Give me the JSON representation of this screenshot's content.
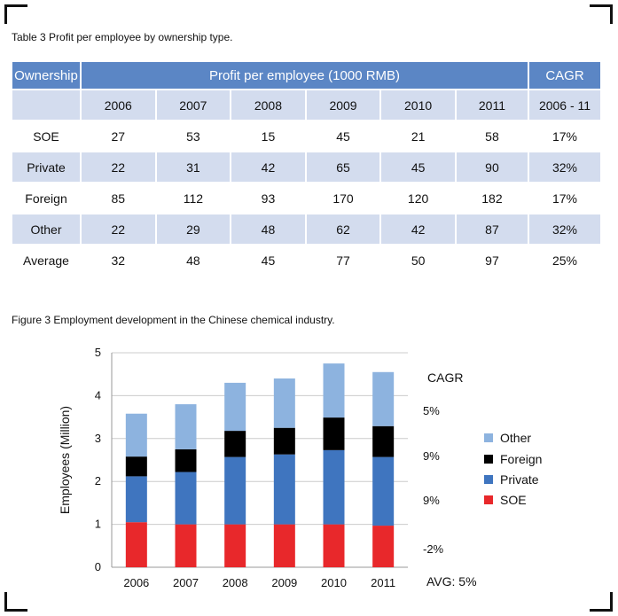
{
  "table": {
    "caption": "Table 3 Profit per employee by ownership type.",
    "header": {
      "ownership": "Ownership",
      "profit": "Profit per employee (1000 RMB)",
      "cagr": "CAGR"
    },
    "years": [
      "2006",
      "2007",
      "2008",
      "2009",
      "2010",
      "2011"
    ],
    "cagr_period": "2006 - 11",
    "rows": [
      {
        "label": "SOE",
        "values": [
          "27",
          "53",
          "15",
          "45",
          "21",
          "58"
        ],
        "cagr": "17%"
      },
      {
        "label": "Private",
        "values": [
          "22",
          "31",
          "42",
          "65",
          "45",
          "90"
        ],
        "cagr": "32%"
      },
      {
        "label": "Foreign",
        "values": [
          "85",
          "112",
          "93",
          "170",
          "120",
          "182"
        ],
        "cagr": "17%"
      },
      {
        "label": "Other",
        "values": [
          "22",
          "29",
          "48",
          "62",
          "42",
          "87"
        ],
        "cagr": "32%"
      },
      {
        "label": "Average",
        "values": [
          "32",
          "48",
          "45",
          "77",
          "50",
          "97"
        ],
        "cagr": "25%"
      }
    ]
  },
  "figure": {
    "caption": "Figure 3 Employment  development in the Chinese chemical industry.",
    "cagr_title": "CAGR",
    "cagr_values": [
      "5%",
      "9%",
      "9%",
      "-2%"
    ],
    "avg_label": "AVG: 5%",
    "legend": [
      "Other",
      "Foreign",
      "Private",
      "SOE"
    ]
  },
  "chart_data": {
    "type": "bar",
    "stacked": true,
    "categories": [
      "2006",
      "2007",
      "2008",
      "2009",
      "2010",
      "2011"
    ],
    "ylabel": "Employees (Million)",
    "xlabel": "",
    "ylim": [
      0,
      5
    ],
    "yticks": [
      "0",
      "1",
      "2",
      "3",
      "4",
      "5"
    ],
    "grid": true,
    "legend_position": "right",
    "series": [
      {
        "name": "SOE",
        "color": "#e8282b",
        "values": [
          1.05,
          1.0,
          1.0,
          1.0,
          1.0,
          0.97
        ]
      },
      {
        "name": "Private",
        "color": "#3f75bf",
        "values": [
          1.07,
          1.22,
          1.57,
          1.63,
          1.73,
          1.6
        ]
      },
      {
        "name": "Foreign",
        "color": "#000000",
        "values": [
          0.46,
          0.53,
          0.61,
          0.62,
          0.76,
          0.72
        ]
      },
      {
        "name": "Other",
        "color": "#8db3df",
        "values": [
          1.0,
          1.05,
          1.12,
          1.15,
          1.26,
          1.26
        ]
      }
    ]
  }
}
